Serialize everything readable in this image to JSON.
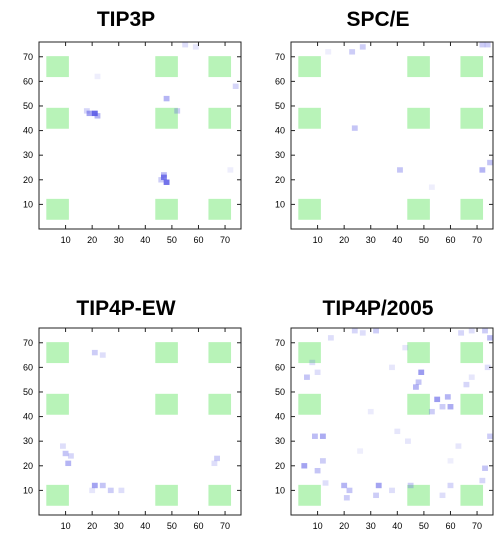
{
  "figure": {
    "colors": {
      "reservoir": "#b8f3b8",
      "occupancy": "#5a5ae6",
      "frame": "#222222"
    }
  },
  "chart_data": [
    {
      "type": "heatmap",
      "title": "TIP3P",
      "xlabel": "",
      "ylabel": "",
      "xlim": [
        0,
        76
      ],
      "ylim": [
        0,
        76
      ],
      "xticks": [
        10,
        20,
        30,
        40,
        50,
        60,
        70
      ],
      "yticks": [
        10,
        20,
        30,
        40,
        50,
        60,
        70
      ],
      "grid": false,
      "reservoirs": [
        [
          7,
          8
        ],
        [
          7,
          45
        ],
        [
          7,
          66
        ],
        [
          48,
          8
        ],
        [
          48,
          45
        ],
        [
          48,
          66
        ],
        [
          68,
          8
        ],
        [
          68,
          45
        ],
        [
          68,
          66
        ]
      ],
      "cells": [
        [
          19,
          47,
          0.55
        ],
        [
          21,
          47,
          0.9
        ],
        [
          22,
          46,
          0.45
        ],
        [
          18,
          48,
          0.25
        ],
        [
          47,
          21,
          0.75
        ],
        [
          48,
          19,
          0.85
        ],
        [
          47,
          22,
          0.4
        ],
        [
          46,
          20,
          0.3
        ],
        [
          48,
          53,
          0.45
        ],
        [
          52,
          48,
          0.3
        ],
        [
          74,
          58,
          0.25
        ],
        [
          55,
          75,
          0.2
        ],
        [
          59,
          74,
          0.15
        ],
        [
          22,
          62,
          0.1
        ],
        [
          72,
          24,
          0.1
        ]
      ]
    },
    {
      "type": "heatmap",
      "title": "SPC/E",
      "xlabel": "",
      "ylabel": "",
      "xlim": [
        0,
        76
      ],
      "ylim": [
        0,
        76
      ],
      "xticks": [
        10,
        20,
        30,
        40,
        50,
        60,
        70
      ],
      "yticks": [
        10,
        20,
        30,
        40,
        50,
        60,
        70
      ],
      "grid": false,
      "reservoirs": [
        [
          7,
          8
        ],
        [
          7,
          45
        ],
        [
          7,
          66
        ],
        [
          48,
          8
        ],
        [
          48,
          45
        ],
        [
          48,
          66
        ],
        [
          68,
          8
        ],
        [
          68,
          45
        ],
        [
          68,
          66
        ]
      ],
      "cells": [
        [
          24,
          41,
          0.35
        ],
        [
          23,
          72,
          0.3
        ],
        [
          27,
          74,
          0.3
        ],
        [
          74,
          75,
          0.3
        ],
        [
          72,
          77,
          0.3
        ],
        [
          41,
          24,
          0.35
        ],
        [
          75,
          27,
          0.35
        ],
        [
          72,
          24,
          0.45
        ],
        [
          53,
          17,
          0.1
        ],
        [
          14,
          72,
          0.1
        ]
      ]
    },
    {
      "type": "heatmap",
      "title": "TIP4P-EW",
      "xlabel": "",
      "ylabel": "",
      "xlim": [
        0,
        76
      ],
      "ylim": [
        0,
        76
      ],
      "xticks": [
        10,
        20,
        30,
        40,
        50,
        60,
        70
      ],
      "yticks": [
        10,
        20,
        30,
        40,
        50,
        60,
        70
      ],
      "grid": false,
      "reservoirs": [
        [
          7,
          8
        ],
        [
          7,
          45
        ],
        [
          7,
          66
        ],
        [
          48,
          8
        ],
        [
          48,
          45
        ],
        [
          48,
          66
        ],
        [
          68,
          8
        ],
        [
          68,
          45
        ],
        [
          68,
          66
        ]
      ],
      "cells": [
        [
          11,
          21,
          0.45
        ],
        [
          10,
          25,
          0.35
        ],
        [
          9,
          28,
          0.2
        ],
        [
          12,
          24,
          0.25
        ],
        [
          21,
          12,
          0.55
        ],
        [
          24,
          12,
          0.35
        ],
        [
          27,
          10,
          0.3
        ],
        [
          31,
          10,
          0.2
        ],
        [
          21,
          66,
          0.3
        ],
        [
          24,
          65,
          0.2
        ],
        [
          67,
          23,
          0.3
        ],
        [
          66,
          21,
          0.2
        ],
        [
          20,
          10,
          0.15
        ]
      ]
    },
    {
      "type": "heatmap",
      "title": "TIP4P/2005",
      "xlabel": "",
      "ylabel": "",
      "xlim": [
        0,
        76
      ],
      "ylim": [
        0,
        76
      ],
      "xticks": [
        10,
        20,
        30,
        40,
        50,
        60,
        70
      ],
      "yticks": [
        10,
        20,
        30,
        40,
        50,
        60,
        70
      ],
      "grid": false,
      "reservoirs": [
        [
          7,
          8
        ],
        [
          7,
          45
        ],
        [
          7,
          66
        ],
        [
          48,
          8
        ],
        [
          48,
          45
        ],
        [
          48,
          66
        ],
        [
          68,
          8
        ],
        [
          68,
          45
        ],
        [
          68,
          66
        ]
      ],
      "cells": [
        [
          9,
          32,
          0.4
        ],
        [
          12,
          32,
          0.5
        ],
        [
          5,
          20,
          0.55
        ],
        [
          10,
          18,
          0.35
        ],
        [
          12,
          22,
          0.3
        ],
        [
          13,
          13,
          0.2
        ],
        [
          20,
          12,
          0.45
        ],
        [
          22,
          10,
          0.35
        ],
        [
          21,
          7,
          0.3
        ],
        [
          33,
          12,
          0.55
        ],
        [
          32,
          8,
          0.3
        ],
        [
          38,
          10,
          0.2
        ],
        [
          45,
          12,
          0.3
        ],
        [
          47,
          52,
          0.45
        ],
        [
          49,
          58,
          0.6
        ],
        [
          48,
          54,
          0.35
        ],
        [
          55,
          47,
          0.6
        ],
        [
          57,
          44,
          0.3
        ],
        [
          53,
          42,
          0.3
        ],
        [
          59,
          48,
          0.45
        ],
        [
          60,
          44,
          0.5
        ],
        [
          66,
          53,
          0.25
        ],
        [
          75,
          72,
          0.4
        ],
        [
          73,
          75,
          0.3
        ],
        [
          68,
          75,
          0.2
        ],
        [
          64,
          74,
          0.25
        ],
        [
          24,
          76,
          0.25
        ],
        [
          27,
          74,
          0.2
        ],
        [
          32,
          75,
          0.3
        ],
        [
          6,
          56,
          0.35
        ],
        [
          10,
          58,
          0.2
        ],
        [
          8,
          62,
          0.2
        ],
        [
          40,
          34,
          0.15
        ],
        [
          44,
          30,
          0.15
        ],
        [
          60,
          22,
          0.1
        ],
        [
          63,
          28,
          0.15
        ],
        [
          75,
          32,
          0.3
        ],
        [
          73,
          19,
          0.35
        ],
        [
          72,
          14,
          0.25
        ],
        [
          30,
          42,
          0.12
        ],
        [
          26,
          26,
          0.1
        ],
        [
          38,
          60,
          0.15
        ],
        [
          15,
          72,
          0.2
        ],
        [
          57,
          8,
          0.2
        ],
        [
          60,
          12,
          0.25
        ],
        [
          74,
          60,
          0.2
        ],
        [
          68,
          56,
          0.15
        ],
        [
          43,
          68,
          0.15
        ]
      ]
    }
  ]
}
